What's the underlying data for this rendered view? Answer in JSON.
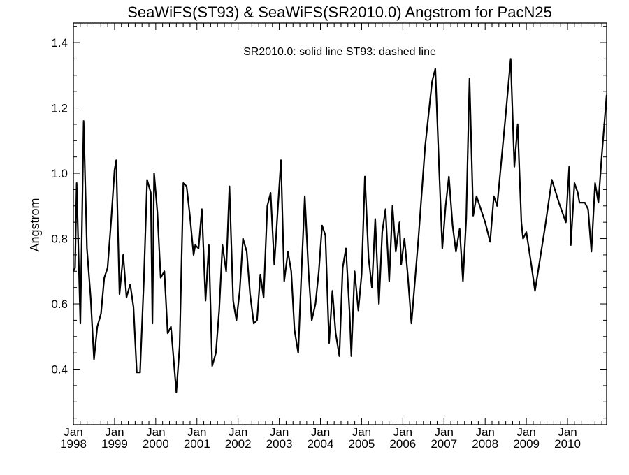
{
  "chart_data": {
    "type": "line",
    "title": "SeaWiFS(ST93) & SeaWiFS(SR2010.0)  Angstrom for PacN25",
    "annotation": "SR2010.0: solid line   ST93: dashed line",
    "ylabel": "Angstrom",
    "xlabel": "",
    "xlim": [
      1998.0,
      2010.95
    ],
    "ylim": [
      0.23,
      1.46
    ],
    "yticks": [
      0.4,
      0.6,
      0.8,
      1.0,
      1.2,
      1.4
    ],
    "ytick_labels": [
      "0.4",
      "0.6",
      "0.8",
      "1.0",
      "1.2",
      "1.4"
    ],
    "xticks": [
      {
        "year": 1998,
        "month": "Jan",
        "label": "1998"
      },
      {
        "year": 1999,
        "month": "Jan",
        "label": "1999"
      },
      {
        "year": 2000,
        "month": "Jan",
        "label": "2000"
      },
      {
        "year": 2001,
        "month": "Jan",
        "label": "2001"
      },
      {
        "year": 2002,
        "month": "Jan",
        "label": "2002"
      },
      {
        "year": 2003,
        "month": "Jan",
        "label": "2003"
      },
      {
        "year": 2004,
        "month": "Jan",
        "label": "2004"
      },
      {
        "year": 2005,
        "month": "Jan",
        "label": "2005"
      },
      {
        "year": 2006,
        "month": "Jan",
        "label": "2006"
      },
      {
        "year": 2007,
        "month": "Jan",
        "label": "2007"
      },
      {
        "year": 2008,
        "month": "Jan",
        "label": "2008"
      },
      {
        "year": 2009,
        "month": "Jan",
        "label": "2009"
      },
      {
        "year": 2010,
        "month": "Jan",
        "label": "2010"
      }
    ],
    "grid": false,
    "series": [
      {
        "name": "SR2010.0",
        "style": "solid",
        "color": "#000000",
        "points": [
          [
            1998.0,
            0.7
          ],
          [
            1998.04,
            0.71
          ],
          [
            1998.08,
            0.97
          ],
          [
            1998.17,
            0.54
          ],
          [
            1998.25,
            1.16
          ],
          [
            1998.33,
            0.77
          ],
          [
            1998.42,
            0.62
          ],
          [
            1998.5,
            0.43
          ],
          [
            1998.58,
            0.53
          ],
          [
            1998.67,
            0.57
          ],
          [
            1998.75,
            0.68
          ],
          [
            1998.83,
            0.71
          ],
          [
            1998.92,
            0.86
          ],
          [
            1999.0,
            1.01
          ],
          [
            1999.04,
            1.04
          ],
          [
            1999.12,
            0.63
          ],
          [
            1999.21,
            0.75
          ],
          [
            1999.29,
            0.62
          ],
          [
            1999.38,
            0.66
          ],
          [
            1999.46,
            0.59
          ],
          [
            1999.54,
            0.39
          ],
          [
            1999.62,
            0.39
          ],
          [
            1999.71,
            0.67
          ],
          [
            1999.79,
            0.98
          ],
          [
            1999.88,
            0.94
          ],
          [
            1999.92,
            0.54
          ],
          [
            1999.96,
            1.0
          ],
          [
            2000.04,
            0.88
          ],
          [
            2000.12,
            0.68
          ],
          [
            2000.21,
            0.7
          ],
          [
            2000.29,
            0.51
          ],
          [
            2000.37,
            0.53
          ],
          [
            2000.5,
            0.33
          ],
          [
            2000.58,
            0.47
          ],
          [
            2000.67,
            0.97
          ],
          [
            2000.75,
            0.96
          ],
          [
            2000.83,
            0.87
          ],
          [
            2000.92,
            0.75
          ],
          [
            2000.96,
            0.78
          ],
          [
            2001.04,
            0.77
          ],
          [
            2001.12,
            0.89
          ],
          [
            2001.21,
            0.61
          ],
          [
            2001.29,
            0.78
          ],
          [
            2001.37,
            0.41
          ],
          [
            2001.46,
            0.45
          ],
          [
            2001.54,
            0.58
          ],
          [
            2001.62,
            0.78
          ],
          [
            2001.71,
            0.7
          ],
          [
            2001.79,
            0.96
          ],
          [
            2001.88,
            0.61
          ],
          [
            2001.96,
            0.55
          ],
          [
            2002.04,
            0.64
          ],
          [
            2002.12,
            0.8
          ],
          [
            2002.21,
            0.76
          ],
          [
            2002.29,
            0.63
          ],
          [
            2002.38,
            0.54
          ],
          [
            2002.46,
            0.55
          ],
          [
            2002.54,
            0.69
          ],
          [
            2002.62,
            0.62
          ],
          [
            2002.71,
            0.9
          ],
          [
            2002.79,
            0.94
          ],
          [
            2002.88,
            0.72
          ],
          [
            2002.96,
            0.88
          ],
          [
            2003.04,
            1.04
          ],
          [
            2003.12,
            0.67
          ],
          [
            2003.21,
            0.76
          ],
          [
            2003.29,
            0.7
          ],
          [
            2003.37,
            0.52
          ],
          [
            2003.46,
            0.45
          ],
          [
            2003.54,
            0.7
          ],
          [
            2003.62,
            0.93
          ],
          [
            2003.71,
            0.7
          ],
          [
            2003.79,
            0.55
          ],
          [
            2003.88,
            0.6
          ],
          [
            2003.96,
            0.7
          ],
          [
            2004.04,
            0.84
          ],
          [
            2004.12,
            0.81
          ],
          [
            2004.21,
            0.48
          ],
          [
            2004.29,
            0.64
          ],
          [
            2004.37,
            0.51
          ],
          [
            2004.46,
            0.44
          ],
          [
            2004.54,
            0.71
          ],
          [
            2004.62,
            0.77
          ],
          [
            2004.71,
            0.57
          ],
          [
            2004.75,
            0.44
          ],
          [
            2004.83,
            0.7
          ],
          [
            2004.92,
            0.58
          ],
          [
            2005.0,
            0.69
          ],
          [
            2005.08,
            0.99
          ],
          [
            2005.17,
            0.74
          ],
          [
            2005.25,
            0.65
          ],
          [
            2005.33,
            0.86
          ],
          [
            2005.42,
            0.6
          ],
          [
            2005.5,
            0.82
          ],
          [
            2005.58,
            0.89
          ],
          [
            2005.67,
            0.67
          ],
          [
            2005.75,
            0.9
          ],
          [
            2005.83,
            0.76
          ],
          [
            2005.92,
            0.85
          ],
          [
            2005.96,
            0.72
          ],
          [
            2006.04,
            0.8
          ],
          [
            2006.12,
            0.69
          ],
          [
            2006.21,
            0.54
          ],
          [
            2006.38,
            0.8
          ],
          [
            2006.54,
            1.08
          ],
          [
            2006.71,
            1.28
          ],
          [
            2006.79,
            1.32
          ],
          [
            2006.88,
            1.02
          ],
          [
            2006.96,
            0.77
          ],
          [
            2007.04,
            0.9
          ],
          [
            2007.12,
            0.99
          ],
          [
            2007.21,
            0.84
          ],
          [
            2007.29,
            0.76
          ],
          [
            2007.38,
            0.83
          ],
          [
            2007.46,
            0.67
          ],
          [
            2007.54,
            0.86
          ],
          [
            2007.62,
            1.29
          ],
          [
            2007.71,
            0.87
          ],
          [
            2007.79,
            0.93
          ],
          [
            2008.0,
            0.85
          ],
          [
            2008.12,
            0.79
          ],
          [
            2008.21,
            0.93
          ],
          [
            2008.29,
            0.9
          ],
          [
            2008.5,
            1.18
          ],
          [
            2008.62,
            1.35
          ],
          [
            2008.71,
            1.02
          ],
          [
            2008.79,
            1.15
          ],
          [
            2008.88,
            0.85
          ],
          [
            2008.92,
            0.8
          ],
          [
            2009.0,
            0.82
          ],
          [
            2009.12,
            0.72
          ],
          [
            2009.21,
            0.64
          ],
          [
            2009.46,
            0.84
          ],
          [
            2009.62,
            0.98
          ],
          [
            2009.79,
            0.91
          ],
          [
            2009.96,
            0.85
          ],
          [
            2010.04,
            1.02
          ],
          [
            2010.08,
            0.78
          ],
          [
            2010.17,
            0.97
          ],
          [
            2010.25,
            0.94
          ],
          [
            2010.29,
            0.91
          ],
          [
            2010.42,
            0.91
          ],
          [
            2010.5,
            0.89
          ],
          [
            2010.58,
            0.76
          ],
          [
            2010.67,
            0.97
          ],
          [
            2010.75,
            0.91
          ],
          [
            2010.83,
            1.05
          ],
          [
            2010.95,
            1.24
          ]
        ]
      }
    ]
  }
}
